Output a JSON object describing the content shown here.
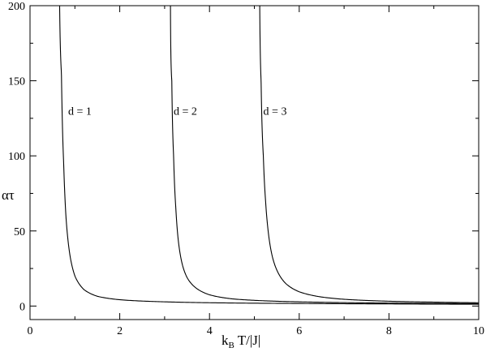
{
  "chart_data": {
    "type": "line",
    "title": "",
    "xlabel": "k_B T/|J|",
    "ylabel": "ατ",
    "xlim": [
      0,
      10
    ],
    "ylim": [
      -9,
      200
    ],
    "grid": false,
    "x_ticks_major": [
      0,
      2,
      4,
      6,
      8,
      10
    ],
    "x_ticks_minor": [
      1,
      3,
      5,
      7,
      9
    ],
    "y_ticks_major": [
      0,
      50,
      100,
      150,
      200
    ],
    "y_ticks_minor": [
      25,
      75,
      125,
      175
    ],
    "series": [
      {
        "name": "d = 1",
        "critical_x": 0.63,
        "x": [
          0.66,
          0.7,
          0.75,
          0.8,
          0.9,
          1.0,
          1.2,
          1.5,
          2.0,
          3.0,
          4.0,
          6.0,
          8.0,
          10.0
        ],
        "y": [
          200,
          155,
          95,
          60,
          32,
          20,
          11,
          6.5,
          4.2,
          2.8,
          2.2,
          1.7,
          1.4,
          1.2
        ]
      },
      {
        "name": "d = 2",
        "critical_x": 3.12,
        "x": [
          3.13,
          3.16,
          3.2,
          3.25,
          3.3,
          3.4,
          3.5,
          3.7,
          4.0,
          4.5,
          5.0,
          6.0,
          8.0,
          10.0
        ],
        "y": [
          200,
          150,
          100,
          65,
          45,
          27,
          19,
          12,
          7.5,
          4.8,
          3.8,
          2.8,
          2.0,
          1.6
        ]
      },
      {
        "name": "d = 3",
        "critical_x": 5.1,
        "x": [
          5.12,
          5.15,
          5.2,
          5.25,
          5.3,
          5.4,
          5.5,
          5.7,
          6.0,
          6.5,
          7.0,
          8.0,
          9.0,
          10.0
        ],
        "y": [
          200,
          150,
          100,
          70,
          52,
          33,
          24,
          15,
          9.5,
          6.0,
          4.5,
          3.2,
          2.6,
          2.2
        ]
      }
    ],
    "annotations": [
      {
        "text": "d = 1",
        "x": 0.85,
        "y": 130
      },
      {
        "text": "d = 2",
        "x": 3.2,
        "y": 130
      },
      {
        "text": "d = 3",
        "x": 5.2,
        "y": 130
      }
    ]
  }
}
